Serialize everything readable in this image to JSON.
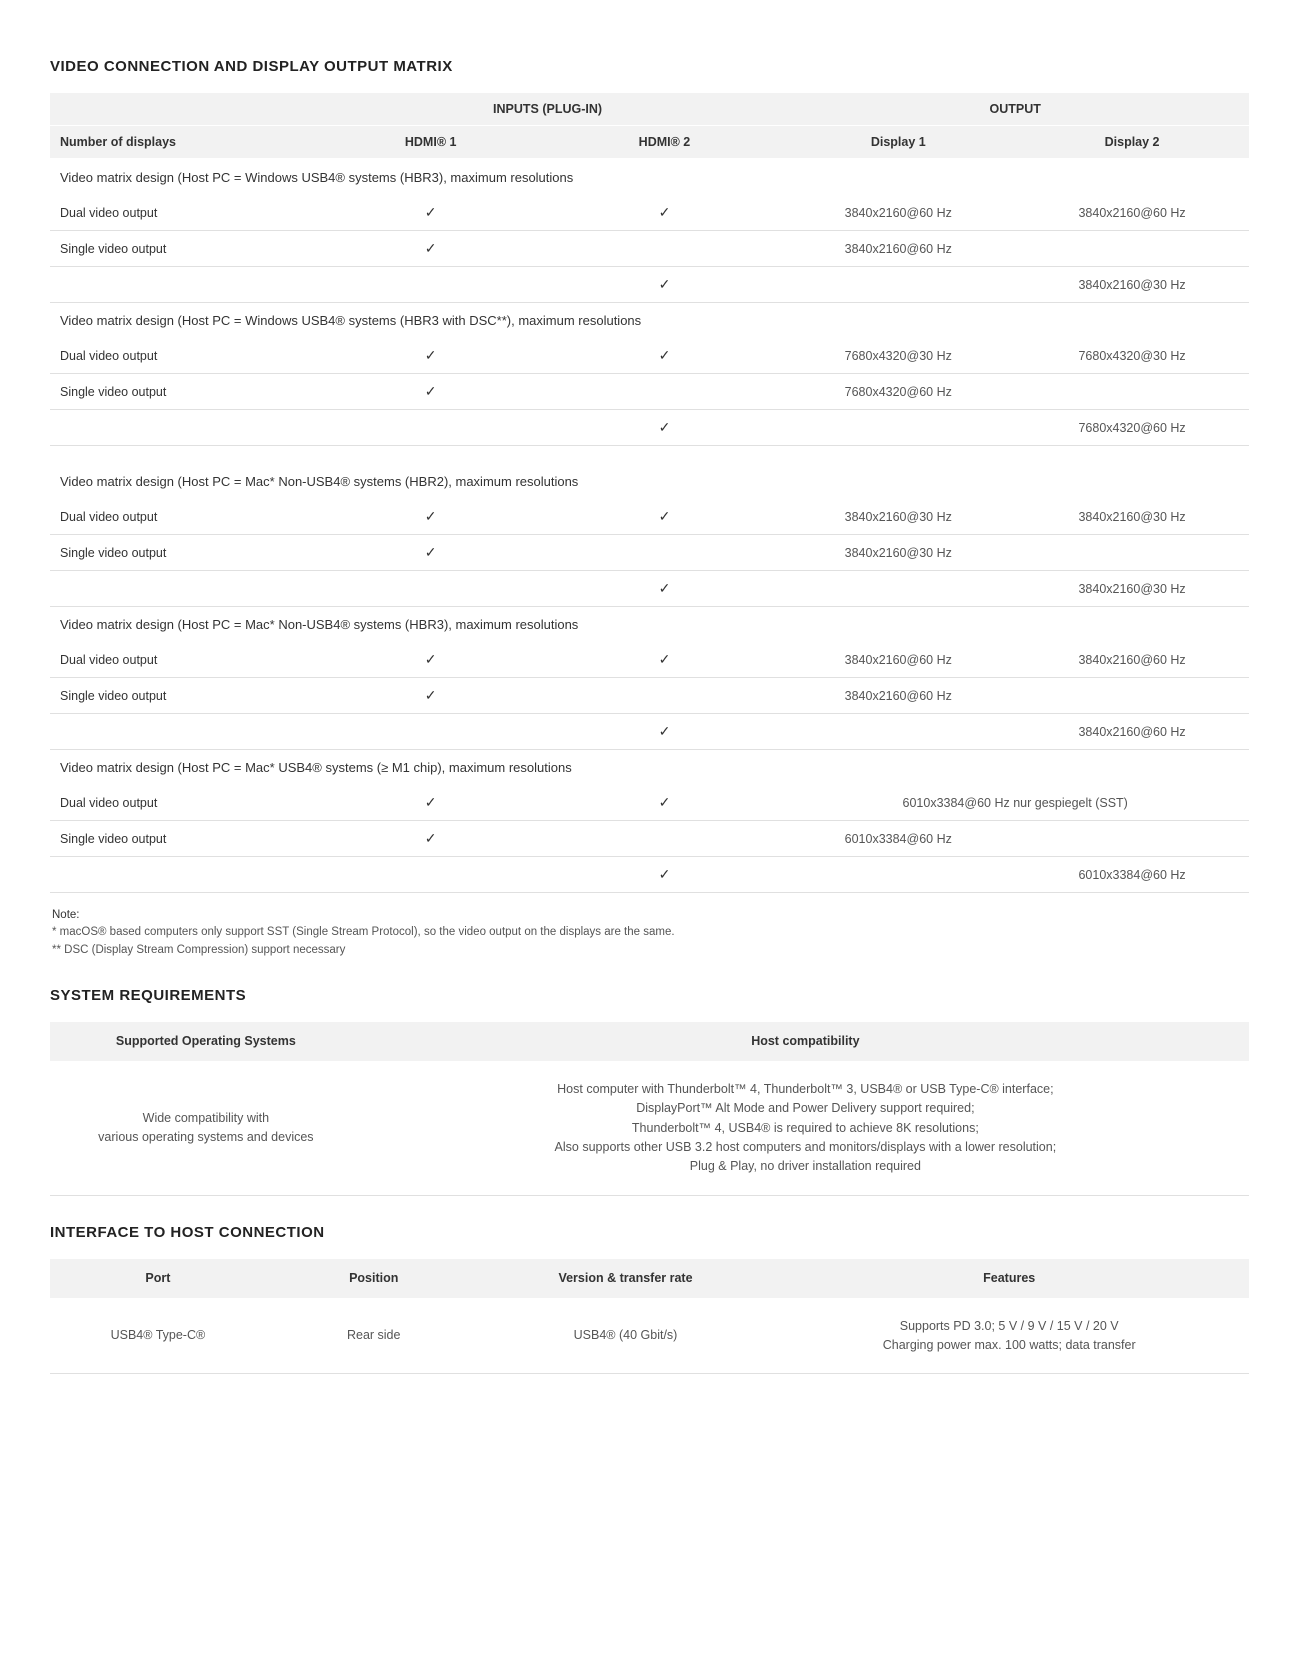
{
  "colors": {
    "text": "#333333",
    "muted": "#555555",
    "header_bg": "#f2f2f2",
    "border": "#e0e0e0",
    "gradient": [
      "#ffd400",
      "#e6007e",
      "#009fe3",
      "#a6ce39"
    ]
  },
  "matrix": {
    "title": "VIDEO CONNECTION AND DISPLAY OUTPUT MATRIX",
    "header_groups": {
      "inputs": "INPUTS (PLUG-IN)",
      "output": "OUTPUT"
    },
    "columns": {
      "c1": "Number of displays",
      "c2": "HDMI® 1",
      "c3": "HDMI® 2",
      "c4": "Display 1",
      "c5": "Display 2"
    },
    "check_mark": "✓",
    "sections": [
      {
        "label": "Video matrix design (Host PC = Windows USB4® systems (HBR3), maximum resolutions",
        "rows": [
          {
            "c1": "Dual video output",
            "c2": "✓",
            "c3": "✓",
            "c4": "3840x2160@60 Hz",
            "c5": "3840x2160@60 Hz"
          },
          {
            "c1": "Single video output",
            "c2": "✓",
            "c3": "",
            "c4": "3840x2160@60 Hz",
            "c5": ""
          },
          {
            "c1": "",
            "c2": "",
            "c3": "✓",
            "c4": "",
            "c5": "3840x2160@30 Hz"
          }
        ]
      },
      {
        "label": "Video matrix design (Host PC = Windows USB4® systems (HBR3 with DSC**), maximum resolutions",
        "rows": [
          {
            "c1": "Dual video output",
            "c2": "✓",
            "c3": "✓",
            "c4": "7680x4320@30 Hz",
            "c5": "7680x4320@30 Hz"
          },
          {
            "c1": "Single video output",
            "c2": "✓",
            "c3": "",
            "c4": "7680x4320@60 Hz",
            "c5": ""
          },
          {
            "c1": "",
            "c2": "",
            "c3": "✓",
            "c4": "",
            "c5": "7680x4320@60 Hz"
          }
        ],
        "gap_after": true
      },
      {
        "label": "Video matrix design (Host PC = Mac* Non-USB4® systems (HBR2), maximum resolutions",
        "rows": [
          {
            "c1": "Dual video output",
            "c2": "✓",
            "c3": "✓",
            "c4": "3840x2160@30 Hz",
            "c5": "3840x2160@30 Hz"
          },
          {
            "c1": "Single video output",
            "c2": "✓",
            "c3": "",
            "c4": "3840x2160@30 Hz",
            "c5": ""
          },
          {
            "c1": "",
            "c2": "",
            "c3": "✓",
            "c4": "",
            "c5": "3840x2160@30 Hz"
          }
        ]
      },
      {
        "label": "Video matrix design (Host PC = Mac* Non-USB4® systems (HBR3), maximum resolutions",
        "rows": [
          {
            "c1": "Dual video output",
            "c2": "✓",
            "c3": "✓",
            "c4": "3840x2160@60 Hz",
            "c5": "3840x2160@60 Hz"
          },
          {
            "c1": "Single video output",
            "c2": "✓",
            "c3": "",
            "c4": "3840x2160@60 Hz",
            "c5": ""
          },
          {
            "c1": "",
            "c2": "",
            "c3": "✓",
            "c4": "",
            "c5": "3840x2160@60 Hz"
          }
        ]
      },
      {
        "label": "Video matrix design (Host PC = Mac* USB4® systems (≥ M1 chip), maximum resolutions",
        "rows": [
          {
            "c1": "Dual video output",
            "c2": "✓",
            "c3": "✓",
            "c4_5_merge": "6010x3384@60 Hz nur gespiegelt (SST)"
          },
          {
            "c1": "Single video output",
            "c2": "✓",
            "c3": "",
            "c4": "6010x3384@60 Hz",
            "c5": ""
          },
          {
            "c1": "",
            "c2": "",
            "c3": "✓",
            "c4": "",
            "c5": "6010x3384@60 Hz"
          }
        ]
      }
    ],
    "notes": {
      "heading": "Note:",
      "line1": "* macOS® based computers only support SST (Single Stream Protocol), so the video output on the displays are the same.",
      "line2": "** DSC (Display Stream Compression) support necessary"
    }
  },
  "system_req": {
    "title": "SYSTEM REQUIREMENTS",
    "columns": {
      "c1": "Supported Operating Systems",
      "c2": "Host compatibility"
    },
    "row": {
      "c1": "Wide compatibility with\nvarious operating systems and devices",
      "c2": "Host computer with Thunderbolt™ 4, Thunderbolt™ 3, USB4® or USB Type-C® interface;\nDisplayPort™ Alt Mode and Power Delivery support required;\nThunderbolt™ 4, USB4® is required to achieve 8K resolutions;\nAlso supports other USB 3.2 host computers and monitors/displays with a lower resolution;\nPlug & Play, no driver installation required"
    }
  },
  "host_iface": {
    "title": "INTERFACE TO HOST CONNECTION",
    "columns": {
      "c1": "Port",
      "c2": "Position",
      "c3": "Version & transfer rate",
      "c4": "Features"
    },
    "row": {
      "c1": "USB4® Type-C®",
      "c2": "Rear side",
      "c3": "USB4® (40 Gbit/s)",
      "c4": "Supports PD 3.0; 5 V / 9 V / 15 V / 20 V\nCharging power max. 100 watts; data transfer"
    }
  }
}
